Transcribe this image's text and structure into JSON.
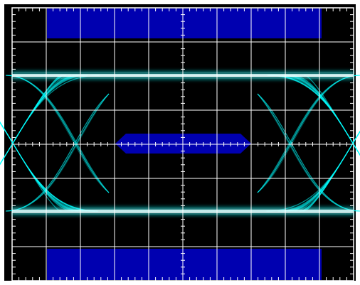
{
  "display": {
    "background_color": "#000000",
    "frame_color": "#ffffff",
    "grid_color": "#ffffff",
    "mask_color": "#0000b0",
    "trace_color": "#00ffff",
    "grid": {
      "divisions_x": 10,
      "divisions_y": 8,
      "minor_ticks_per_division": 5
    },
    "eye_pattern": {
      "upper_rail_level": 0.78,
      "lower_rail_level": -0.78,
      "crossing_points": [
        "left",
        "right"
      ]
    },
    "masks": [
      {
        "name": "top-limit-mask"
      },
      {
        "name": "center-eye-mask"
      },
      {
        "name": "bottom-limit-mask"
      }
    ]
  }
}
